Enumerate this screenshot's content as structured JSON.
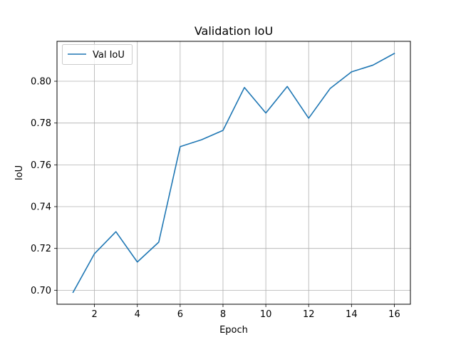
{
  "chart_data": {
    "type": "line",
    "title": "Validation IoU",
    "xlabel": "Epoch",
    "ylabel": "IoU",
    "x": [
      1,
      2,
      3,
      4,
      5,
      6,
      7,
      8,
      9,
      10,
      11,
      12,
      13,
      14,
      15,
      16
    ],
    "series": [
      {
        "name": "Val IoU",
        "color": "#1f77b4",
        "values": [
          0.699,
          0.7175,
          0.728,
          0.7135,
          0.723,
          0.7687,
          0.772,
          0.7765,
          0.797,
          0.7848,
          0.7975,
          0.7823,
          0.7965,
          0.8045,
          0.8077,
          0.8133
        ]
      }
    ],
    "xlim": [
      0.25,
      16.75
    ],
    "ylim": [
      0.6933,
      0.8191
    ],
    "xticks": [
      2,
      4,
      6,
      8,
      10,
      12,
      14,
      16
    ],
    "xtick_labels": [
      "2",
      "4",
      "6",
      "8",
      "10",
      "12",
      "14",
      "16"
    ],
    "yticks": [
      0.7,
      0.72,
      0.74,
      0.76,
      0.78,
      0.8
    ],
    "ytick_labels": [
      "0.70",
      "0.72",
      "0.74",
      "0.76",
      "0.78",
      "0.80"
    ],
    "grid": true,
    "legend_position": "upper-left"
  }
}
